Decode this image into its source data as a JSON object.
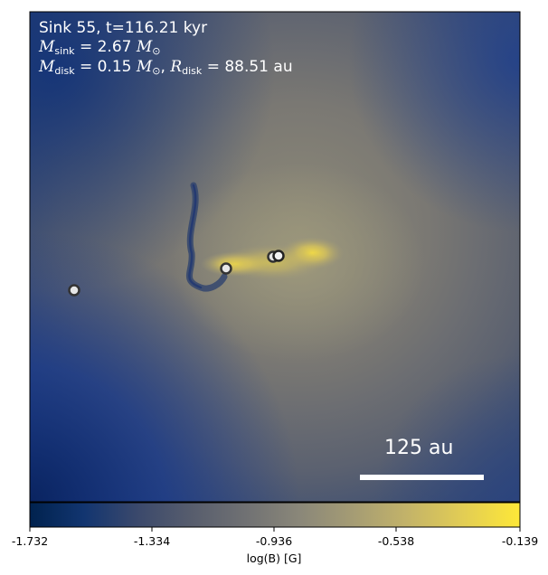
{
  "annotation": {
    "line1": "Sink 55, t=116.21 kyr",
    "m_sink_symbol": "M",
    "m_sink_sub": "sink",
    "m_sink_value": "= 2.67",
    "m_sink_unit": "M",
    "sun_symbol": "⊙",
    "m_disk_symbol": "M",
    "m_disk_sub": "disk",
    "m_disk_value": "= 0.15",
    "m_disk_unit": "M",
    "r_disk_symbol": "R",
    "r_disk_sub": "disk",
    "r_disk_value": "= 88.51",
    "r_disk_unit": "au"
  },
  "scale_bar": {
    "label": "125 au"
  },
  "colorbar": {
    "ticks": [
      "-1.732",
      "-1.334",
      "-0.936",
      "-0.538",
      "-0.139"
    ],
    "label": "log(B) [G]",
    "colormap": [
      "#00224e",
      "#123570",
      "#3b496c",
      "#575d6d",
      "#707173",
      "#8a8779",
      "#a59c74",
      "#c3b369",
      "#e1cc55",
      "#fee838"
    ]
  },
  "sink_particles": [
    "sink-1",
    "sink-2",
    "sink-3",
    "sink-4"
  ]
}
